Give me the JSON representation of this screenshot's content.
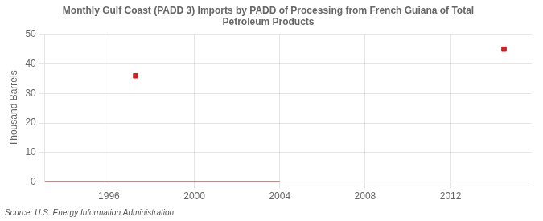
{
  "chart_data": {
    "type": "line",
    "title": "Monthly Gulf Coast (PADD 3) Imports by PADD of Processing from French Guiana of Total\nPetroleum Products",
    "ylabel": "Thousand Barrels",
    "source": "Source: U.S. Energy Information Administration",
    "series": [
      {
        "type": "line",
        "color": "#8b1a1a",
        "x": [
          1993.0,
          2004.0
        ],
        "values": [
          0,
          0
        ]
      },
      {
        "type": "scatter",
        "color": "#cc2222",
        "marker": "square",
        "x": [
          1997.25,
          2014.5
        ],
        "values": [
          36,
          45
        ]
      }
    ],
    "xlim": [
      1993.0,
      2015.8
    ],
    "xticks": [
      1996,
      2000,
      2004,
      2008,
      2012
    ],
    "ylim": [
      0,
      50
    ],
    "yticks": [
      0,
      10,
      20,
      30,
      40,
      50
    ],
    "grid": true
  }
}
